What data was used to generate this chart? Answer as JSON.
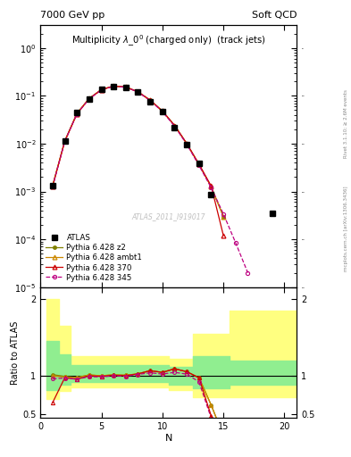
{
  "title_left": "7000 GeV pp",
  "title_right": "Soft QCD",
  "plot_title": "Multiplicity $\\lambda\\_0^0$ (charged only)  (track jets)",
  "xlabel": "N",
  "ylabel_ratio": "Ratio to ATLAS",
  "watermark": "ATLAS_2011_I919017",
  "right_label1": "Rivet 3.1.10; ≥ 2.6M events",
  "right_label2": "mcplots.cern.ch [arXiv:1306.3436]",
  "atlas_x": [
    1,
    2,
    3,
    4,
    5,
    6,
    7,
    8,
    9,
    10,
    11,
    12,
    13,
    14,
    19
  ],
  "atlas_y": [
    0.0013,
    0.0115,
    0.044,
    0.087,
    0.135,
    0.158,
    0.152,
    0.118,
    0.076,
    0.046,
    0.022,
    0.0095,
    0.0038,
    0.00085,
    0.00035
  ],
  "p345_x": [
    1,
    2,
    3,
    4,
    5,
    6,
    7,
    8,
    9,
    10,
    11,
    12,
    13,
    14,
    15,
    16,
    17
  ],
  "p345_y": [
    0.00125,
    0.0111,
    0.042,
    0.086,
    0.133,
    0.158,
    0.151,
    0.12,
    0.079,
    0.047,
    0.023,
    0.0097,
    0.0035,
    0.0012,
    0.00034,
    8.5e-05,
    2e-05
  ],
  "p370_x": [
    1,
    2,
    3,
    4,
    5,
    6,
    7,
    8,
    9,
    10,
    11,
    12,
    13,
    14,
    15
  ],
  "p370_y": [
    0.00128,
    0.0112,
    0.042,
    0.087,
    0.134,
    0.159,
    0.152,
    0.121,
    0.081,
    0.048,
    0.024,
    0.01,
    0.0037,
    0.0013,
    0.00012
  ],
  "pambt_x": [
    1,
    2,
    3,
    4,
    5,
    6,
    7,
    8,
    9,
    10,
    11,
    12,
    13,
    14,
    15
  ],
  "pambt_y": [
    0.0013,
    0.0113,
    0.043,
    0.088,
    0.135,
    0.16,
    0.153,
    0.121,
    0.081,
    0.048,
    0.024,
    0.01,
    0.0037,
    0.00125,
    0.0003
  ],
  "pz2_x": [
    1,
    2,
    3,
    4,
    5,
    6,
    7,
    8,
    9,
    10,
    11,
    12,
    13,
    14,
    15
  ],
  "pz2_y": [
    0.00132,
    0.0114,
    0.043,
    0.088,
    0.135,
    0.16,
    0.153,
    0.121,
    0.081,
    0.048,
    0.024,
    0.01,
    0.0037,
    0.00125,
    0.0003
  ],
  "p345_color": "#be0080",
  "p370_color": "#cc0000",
  "pambt_color": "#cc8800",
  "pz2_color": "#808000",
  "r345_x": [
    1,
    2,
    3,
    4,
    5,
    6,
    7,
    8,
    9,
    10,
    11,
    12,
    13
  ],
  "r345_y": [
    0.96,
    0.97,
    0.955,
    0.989,
    0.985,
    1.0,
    0.993,
    1.017,
    1.039,
    1.022,
    1.045,
    1.021,
    0.921
  ],
  "r345_ext_x": [
    13,
    14,
    15,
    16,
    17,
    18,
    19,
    20
  ],
  "r345_ext_y": [
    0.921,
    0.45,
    0.32,
    0.22,
    0.15,
    0.11,
    0.08,
    0.06
  ],
  "r370_x": [
    1,
    2,
    3,
    4,
    5,
    6,
    7,
    8,
    9,
    10,
    11,
    12,
    13,
    14,
    15
  ],
  "r370_y": [
    0.65,
    0.975,
    0.955,
    0.999,
    0.993,
    1.006,
    1.0,
    1.025,
    1.066,
    1.044,
    1.091,
    1.053,
    0.974,
    0.48,
    0.1
  ],
  "rambt_x": [
    1,
    2,
    3,
    4,
    5,
    6,
    7,
    8,
    9,
    10,
    11,
    12,
    13,
    14,
    15
  ],
  "rambt_y": [
    1.0,
    0.983,
    0.977,
    1.011,
    1.0,
    1.013,
    1.007,
    1.025,
    1.066,
    1.044,
    1.091,
    1.053,
    0.974,
    0.62,
    0.22
  ],
  "rz2_x": [
    1,
    2,
    3,
    4,
    5,
    6,
    7,
    8,
    9,
    10,
    11,
    12,
    13,
    14,
    15
  ],
  "rz2_y": [
    1.015,
    0.991,
    0.977,
    1.011,
    1.0,
    1.013,
    1.007,
    1.025,
    1.066,
    1.044,
    1.091,
    1.053,
    0.974,
    0.62,
    0.22
  ],
  "ylim_main": [
    1e-05,
    3.0
  ],
  "ylim_ratio": [
    0.45,
    2.15
  ],
  "xlim": [
    0,
    21
  ],
  "yticks_ratio": [
    0.5,
    1.0,
    2.0
  ],
  "ytick_labels_ratio": [
    "0.5",
    "1",
    "2"
  ]
}
